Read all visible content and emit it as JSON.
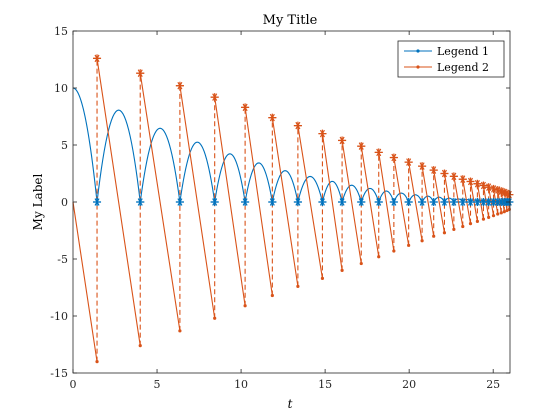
{
  "chart_data": {
    "type": "line",
    "title": "My Title",
    "xlabel": "t",
    "ylabel": "My Label",
    "xlim": [
      0,
      26
    ],
    "ylim": [
      -15,
      15
    ],
    "xticks": [
      0,
      5,
      10,
      15,
      20,
      25
    ],
    "yticks": [
      -15,
      -10,
      -5,
      0,
      5,
      10,
      15
    ],
    "xtick_labels": [
      "0",
      "5",
      "10",
      "15",
      "20",
      "25"
    ],
    "ytick_labels": [
      "-15",
      "-10",
      "-5",
      "0",
      "5",
      "10",
      "15"
    ],
    "legend_position": "top-right",
    "series": [
      {
        "name": "Legend 1",
        "color": "#0072BD",
        "kind": "bouncing-curve",
        "peaks": [
          10.0,
          8.06,
          6.47,
          5.25,
          4.23,
          3.43,
          2.75,
          2.24,
          1.81,
          1.47,
          1.19,
          0.96,
          0.78,
          0.63,
          0.51,
          0.42,
          0.34,
          0.27,
          0.22,
          0.18,
          0.14,
          0.12,
          0.09,
          0.08,
          0.06,
          0.05,
          0.04,
          0.03
        ],
        "impact_times": [
          1.43,
          4.0,
          6.36,
          8.43,
          10.24,
          11.86,
          13.38,
          14.84,
          16.01,
          17.15,
          18.19,
          19.09,
          19.97,
          20.77,
          21.46,
          22.1,
          22.66,
          23.19,
          23.65,
          24.06,
          24.42,
          24.73,
          25.02,
          25.27,
          25.48,
          25.66,
          25.82,
          25.96
        ],
        "impact_marker": "asterisk",
        "impact_value": 0
      },
      {
        "name": "Legend 2",
        "color": "#D95319",
        "kind": "sawtooth",
        "start": [
          0,
          0
        ],
        "impact_times": [
          1.43,
          4.0,
          6.36,
          8.43,
          10.24,
          11.86,
          13.38,
          14.84,
          16.01,
          17.15,
          18.19,
          19.09,
          19.97,
          20.77,
          21.46,
          22.1,
          22.66,
          23.19,
          23.65,
          24.06,
          24.42,
          24.73,
          25.02,
          25.27,
          25.48,
          25.66,
          25.82,
          25.96
        ],
        "pre_impact": [
          -14.0,
          -12.6,
          -11.3,
          -10.2,
          -9.1,
          -8.2,
          -7.4,
          -6.7,
          -6.0,
          -5.4,
          -4.8,
          -4.3,
          -3.8,
          -3.4,
          -3.0,
          -2.7,
          -2.4,
          -2.15,
          -1.9,
          -1.7,
          -1.5,
          -1.35,
          -1.2,
          -1.05,
          -0.95,
          -0.85,
          -0.75,
          -0.65
        ],
        "post_impact": [
          12.6,
          11.3,
          10.2,
          9.2,
          8.3,
          7.4,
          6.7,
          6.0,
          5.4,
          4.9,
          4.35,
          3.9,
          3.5,
          3.15,
          2.8,
          2.5,
          2.25,
          2.0,
          1.8,
          1.6,
          1.45,
          1.3,
          1.15,
          1.05,
          0.95,
          0.85,
          0.75,
          0.65
        ]
      }
    ]
  }
}
